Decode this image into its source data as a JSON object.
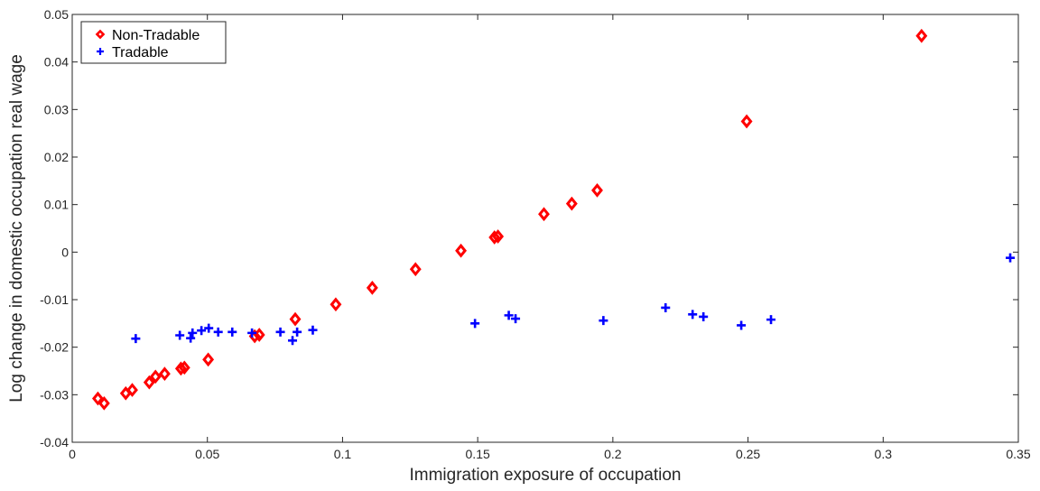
{
  "chart_data": {
    "type": "scatter",
    "title": "",
    "xlabel": "Immigration exposure of occupation",
    "ylabel": "Log change in domestic occupation real wage",
    "xlim": [
      0,
      0.35
    ],
    "ylim": [
      -0.04,
      0.05
    ],
    "xticks": [
      0,
      0.05,
      0.1,
      0.15,
      0.2,
      0.25,
      0.3,
      0.35
    ],
    "xtick_labels": [
      "0",
      "0.05",
      "0.1",
      "0.15",
      "0.2",
      "0.25",
      "0.3",
      "0.35"
    ],
    "yticks": [
      -0.04,
      -0.03,
      -0.02,
      -0.01,
      0,
      0.01,
      0.02,
      0.03,
      0.04,
      0.05
    ],
    "ytick_labels": [
      "-0.04",
      "-0.03",
      "-0.02",
      "-0.01",
      "0",
      "0.01",
      "0.02",
      "0.03",
      "0.04",
      "0.05"
    ],
    "grid": false,
    "legend_position": "top-left",
    "series": [
      {
        "name": "Non-Tradable",
        "marker": "diamond",
        "color": "#ff0000",
        "points": [
          [
            0.0095,
            -0.0308
          ],
          [
            0.0118,
            -0.0318
          ],
          [
            0.0198,
            -0.0297
          ],
          [
            0.0222,
            -0.029
          ],
          [
            0.0285,
            -0.0274
          ],
          [
            0.0308,
            -0.0262
          ],
          [
            0.0342,
            -0.0256
          ],
          [
            0.0402,
            -0.0245
          ],
          [
            0.0415,
            -0.0243
          ],
          [
            0.0503,
            -0.0226
          ],
          [
            0.0675,
            -0.0177
          ],
          [
            0.0692,
            -0.0174
          ],
          [
            0.0825,
            -0.0141
          ],
          [
            0.0975,
            -0.011
          ],
          [
            0.111,
            -0.0075
          ],
          [
            0.127,
            -0.0036
          ],
          [
            0.1438,
            0.0003
          ],
          [
            0.1562,
            0.0031
          ],
          [
            0.1575,
            0.0033
          ],
          [
            0.1745,
            0.008
          ],
          [
            0.1848,
            0.0102
          ],
          [
            0.1942,
            0.013
          ],
          [
            0.2495,
            0.0275
          ],
          [
            0.3142,
            0.0455
          ]
        ]
      },
      {
        "name": "Tradable",
        "marker": "plus",
        "color": "#0000ff",
        "points": [
          [
            0.0235,
            -0.0182
          ],
          [
            0.0398,
            -0.0175
          ],
          [
            0.0438,
            -0.0181
          ],
          [
            0.0445,
            -0.017
          ],
          [
            0.0478,
            -0.0165
          ],
          [
            0.0505,
            -0.016
          ],
          [
            0.054,
            -0.0168
          ],
          [
            0.0592,
            -0.0168
          ],
          [
            0.0665,
            -0.017
          ],
          [
            0.077,
            -0.0168
          ],
          [
            0.0815,
            -0.0186
          ],
          [
            0.0832,
            -0.0168
          ],
          [
            0.089,
            -0.0164
          ],
          [
            0.149,
            -0.015
          ],
          [
            0.1615,
            -0.0133
          ],
          [
            0.164,
            -0.014
          ],
          [
            0.1965,
            -0.0144
          ],
          [
            0.2195,
            -0.0117
          ],
          [
            0.2295,
            -0.0131
          ],
          [
            0.2335,
            -0.0136
          ],
          [
            0.2475,
            -0.0154
          ],
          [
            0.2585,
            -0.0142
          ],
          [
            0.347,
            -0.0012
          ]
        ]
      }
    ]
  }
}
